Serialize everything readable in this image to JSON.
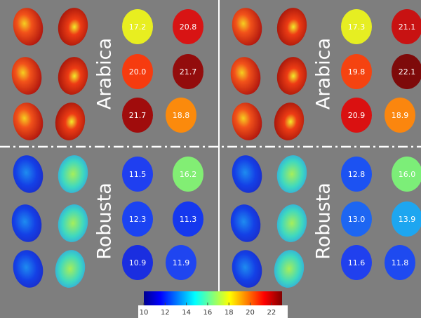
{
  "colors": {
    "background": "#7e7e7e",
    "divider": "#ffffff",
    "value_text": "#ffffff"
  },
  "quadrants": [
    {
      "label": "Arabica",
      "beans": [
        {
          "style": "hot",
          "value": "17.2",
          "color": "#e8ee20"
        },
        {
          "style": "hot",
          "value": "20.8",
          "color": "#d81414"
        },
        {
          "style": "hot",
          "value": "20.0",
          "color": "#f63b0f"
        },
        {
          "style": "hot",
          "value": "21.7",
          "color": "#930c0c"
        },
        {
          "style": "hot",
          "value": "21.7",
          "color": "#a00c0c"
        },
        {
          "style": "hot",
          "value": "18.8",
          "color": "#fb8a0c"
        }
      ]
    },
    {
      "label": "Arabica",
      "beans": [
        {
          "style": "hot",
          "value": "17.3",
          "color": "#e6ee22"
        },
        {
          "style": "hot",
          "value": "21.1",
          "color": "#c81212"
        },
        {
          "style": "hot",
          "value": "19.8",
          "color": "#f54310"
        },
        {
          "style": "hot",
          "value": "22.1",
          "color": "#7e0a0a"
        },
        {
          "style": "hot",
          "value": "20.9",
          "color": "#da1111"
        },
        {
          "style": "hot",
          "value": "18.9",
          "color": "#fb860e"
        }
      ]
    },
    {
      "label": "Robusta",
      "beans": [
        {
          "style": "cold",
          "value": "11.5",
          "color": "#1f3ff0"
        },
        {
          "style": "cold",
          "value": "16.2",
          "color": "#82ee74"
        },
        {
          "style": "cold",
          "value": "12.3",
          "color": "#1b43f2"
        },
        {
          "style": "cold",
          "value": "11.3",
          "color": "#1538ee"
        },
        {
          "style": "cold",
          "value": "10.9",
          "color": "#1a2ee0"
        },
        {
          "style": "cold",
          "value": "11.9",
          "color": "#1f45f0"
        }
      ]
    },
    {
      "label": "Robusta",
      "beans": [
        {
          "style": "cold",
          "value": "12.8",
          "color": "#1c52f2"
        },
        {
          "style": "cold",
          "value": "16.0",
          "color": "#7cee78"
        },
        {
          "style": "cold",
          "value": "13.0",
          "color": "#1d66f2"
        },
        {
          "style": "cold",
          "value": "13.9",
          "color": "#1ea6f0"
        },
        {
          "style": "cold",
          "value": "11.6",
          "color": "#2040ee"
        },
        {
          "style": "cold",
          "value": "11.8",
          "color": "#1e4af0"
        }
      ]
    }
  ],
  "colorbar": {
    "min": 10,
    "max": 23,
    "ticks": [
      "10",
      "12",
      "14",
      "16",
      "18",
      "20",
      "22"
    ],
    "stops": [
      "#00008f",
      "#0000ff",
      "#00ffff",
      "#ffff00",
      "#ff0000",
      "#800000"
    ]
  }
}
